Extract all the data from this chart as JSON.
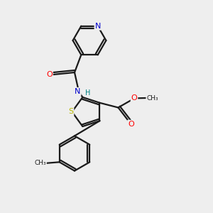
{
  "background_color": "#eeeeee",
  "bond_color": "#1a1a1a",
  "atom_colors": {
    "N": "#0000cc",
    "O": "#ff0000",
    "S": "#b8b800",
    "C": "#1a1a1a",
    "H": "#008080"
  }
}
